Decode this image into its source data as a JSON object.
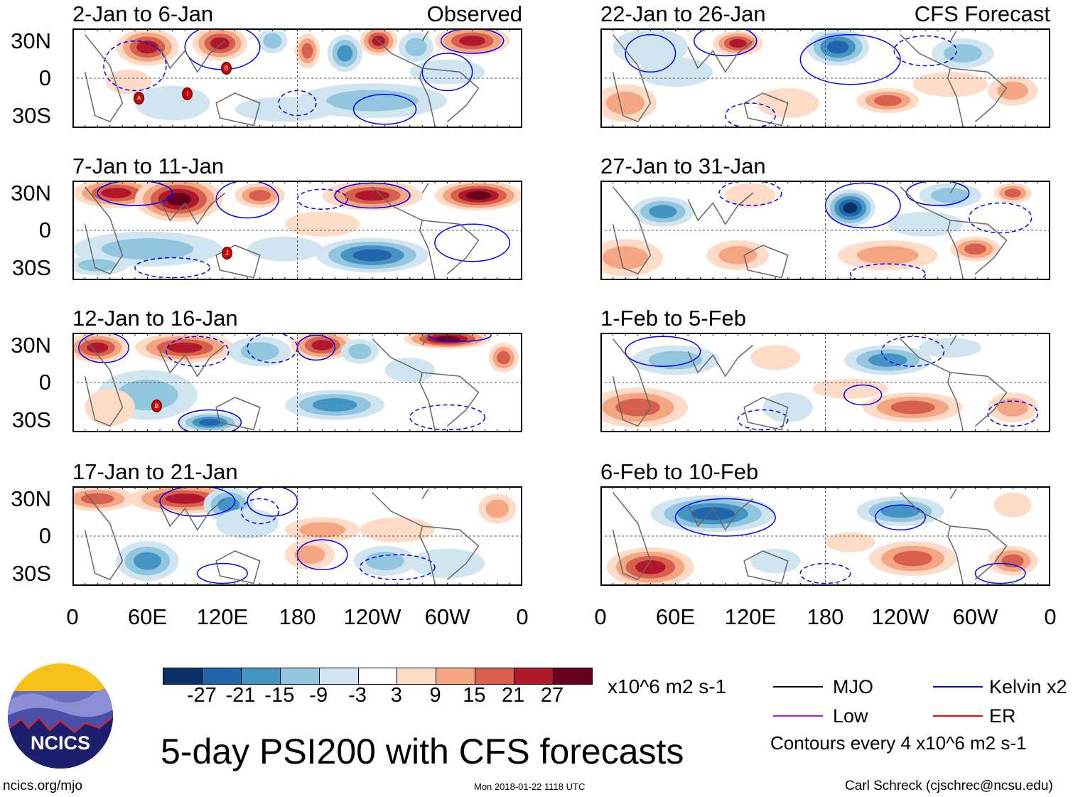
{
  "panels": {
    "left": [
      {
        "title": "2-Jan to 6-Jan",
        "tag": "Observed"
      },
      {
        "title": "7-Jan to 11-Jan"
      },
      {
        "title": "12-Jan to 16-Jan"
      },
      {
        "title": "17-Jan to 21-Jan"
      }
    ],
    "right": [
      {
        "title": "22-Jan to 26-Jan",
        "tag": "CFS Forecast"
      },
      {
        "title": "27-Jan to 31-Jan"
      },
      {
        "title": "1-Feb to 5-Feb"
      },
      {
        "title": "6-Feb to 10-Feb"
      }
    ]
  },
  "lat_labels": [
    "30N",
    "0",
    "30S"
  ],
  "lon_labels": [
    "0",
    "60E",
    "120E",
    "180",
    "120W",
    "60W",
    "0"
  ],
  "storm_markers": [
    "B",
    "A",
    "I",
    "J",
    "B"
  ],
  "colorbar": {
    "colors": [
      "#0a3165",
      "#2166ac",
      "#4393c3",
      "#92c5de",
      "#d1e5f0",
      "#ffffff",
      "#fddbc7",
      "#f4a582",
      "#d6604d",
      "#b2182b",
      "#67001f"
    ],
    "ticks": [
      "-27",
      "-21",
      "-15",
      "-9",
      "-3",
      "3",
      "9",
      "15",
      "21",
      "27"
    ],
    "units": "x10^6 m2 s-1"
  },
  "legend": {
    "items": [
      {
        "label": "MJO",
        "color": "#000000"
      },
      {
        "label": "Kelvin x2",
        "color": "#0000ff"
      },
      {
        "label": "Low",
        "color": "#a020f0"
      },
      {
        "label": "ER",
        "color": "#ff0000"
      }
    ],
    "note": "Contours every 4 x10^6 m2 s-1"
  },
  "title": "5-day PSI200 with CFS forecasts",
  "logo_text": "NCICS",
  "footer": {
    "left": "ncics.org/mjo",
    "center": "Mon 2018-01-22 1118 UTC",
    "right": "Carl Schreck (cjschrec@ncsu.edu)"
  }
}
